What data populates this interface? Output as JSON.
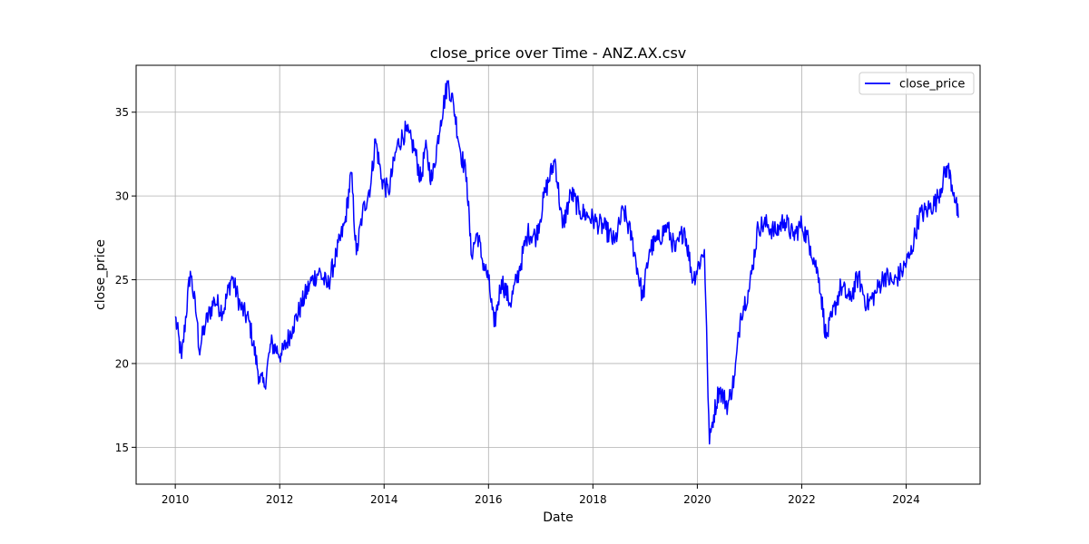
{
  "chart_data": {
    "type": "line",
    "title": "close_price over Time - ANZ.AX.csv",
    "xlabel": "Date",
    "ylabel": "close_price",
    "xlim": [
      "2009-04-01",
      "2025-06-01"
    ],
    "ylim": [
      12.8,
      37.8
    ],
    "x_ticks": [
      "2010",
      "2012",
      "2014",
      "2016",
      "2018",
      "2020",
      "2022",
      "2024"
    ],
    "y_ticks": [
      15,
      20,
      25,
      30,
      35
    ],
    "grid": true,
    "legend": {
      "position": "top-right",
      "entries": [
        "close_price"
      ]
    },
    "series": [
      {
        "name": "close_price",
        "color": "#0000ff",
        "x": [
          "2010-01-01",
          "2010-02-15",
          "2010-04-15",
          "2010-06-01",
          "2010-06-15",
          "2010-08-01",
          "2010-10-01",
          "2010-12-01",
          "2011-02-01",
          "2011-04-01",
          "2011-06-01",
          "2011-08-10",
          "2011-09-15",
          "2011-11-01",
          "2012-01-15",
          "2012-04-01",
          "2012-06-01",
          "2012-08-01",
          "2012-10-01",
          "2012-12-01",
          "2013-02-01",
          "2013-04-01",
          "2013-05-15",
          "2013-06-20",
          "2013-08-01",
          "2013-10-01",
          "2013-11-01",
          "2013-12-15",
          "2014-02-01",
          "2014-04-01",
          "2014-06-01",
          "2014-08-01",
          "2014-09-15",
          "2014-10-15",
          "2014-12-01",
          "2015-02-01",
          "2015-03-20",
          "2015-05-01",
          "2015-06-15",
          "2015-08-01",
          "2015-09-01",
          "2015-10-15",
          "2015-11-15",
          "2016-01-01",
          "2016-02-10",
          "2016-04-01",
          "2016-06-01",
          "2016-08-01",
          "2016-10-01",
          "2016-12-01",
          "2017-02-01",
          "2017-04-10",
          "2017-06-01",
          "2017-08-01",
          "2017-10-01",
          "2017-12-01",
          "2018-02-01",
          "2018-04-01",
          "2018-06-01",
          "2018-08-01",
          "2018-10-01",
          "2018-12-15",
          "2019-02-01",
          "2019-04-01",
          "2019-06-01",
          "2019-08-01",
          "2019-10-01",
          "2019-12-01",
          "2020-02-20",
          "2020-03-10",
          "2020-03-25",
          "2020-04-15",
          "2020-06-01",
          "2020-08-01",
          "2020-09-20",
          "2020-11-01",
          "2021-01-01",
          "2021-03-01",
          "2021-05-01",
          "2021-07-01",
          "2021-09-01",
          "2021-11-01",
          "2022-01-01",
          "2022-03-01",
          "2022-05-01",
          "2022-06-20",
          "2022-08-01",
          "2022-10-01",
          "2022-12-01",
          "2023-02-01",
          "2023-04-01",
          "2023-06-01",
          "2023-08-01",
          "2023-10-01",
          "2023-12-01",
          "2024-02-01",
          "2024-04-01",
          "2024-06-01",
          "2024-08-01",
          "2024-10-15",
          "2024-12-01",
          "2024-12-31"
        ],
        "values": [
          22.8,
          20.3,
          25.5,
          22.6,
          20.8,
          22.4,
          23.8,
          23.1,
          25.2,
          23.4,
          22.5,
          19.2,
          18.6,
          21.2,
          20.5,
          22.2,
          23.5,
          24.8,
          25.5,
          24.6,
          26.5,
          28.4,
          31.4,
          26.5,
          28.9,
          30.8,
          33.4,
          31.0,
          30.2,
          33.0,
          33.9,
          32.8,
          30.9,
          32.9,
          30.9,
          34.5,
          36.8,
          35.4,
          32.8,
          31.1,
          26.5,
          27.8,
          26.3,
          25.0,
          22.2,
          25.0,
          23.6,
          25.5,
          27.8,
          27.6,
          30.2,
          32.2,
          28.1,
          30.2,
          29.1,
          28.8,
          28.4,
          28.0,
          27.2,
          29.2,
          27.4,
          23.9,
          26.8,
          27.4,
          28.2,
          26.7,
          28.1,
          25.0,
          26.8,
          20.0,
          15.2,
          16.5,
          18.5,
          17.5,
          19.3,
          23.0,
          24.5,
          28.2,
          28.3,
          27.8,
          28.6,
          27.6,
          28.3,
          27.0,
          25.1,
          21.5,
          22.8,
          24.6,
          23.8,
          25.2,
          23.5,
          24.2,
          25.3,
          24.8,
          25.5,
          26.5,
          28.8,
          29.2,
          29.7,
          31.8,
          30.2,
          28.7
        ]
      }
    ]
  }
}
